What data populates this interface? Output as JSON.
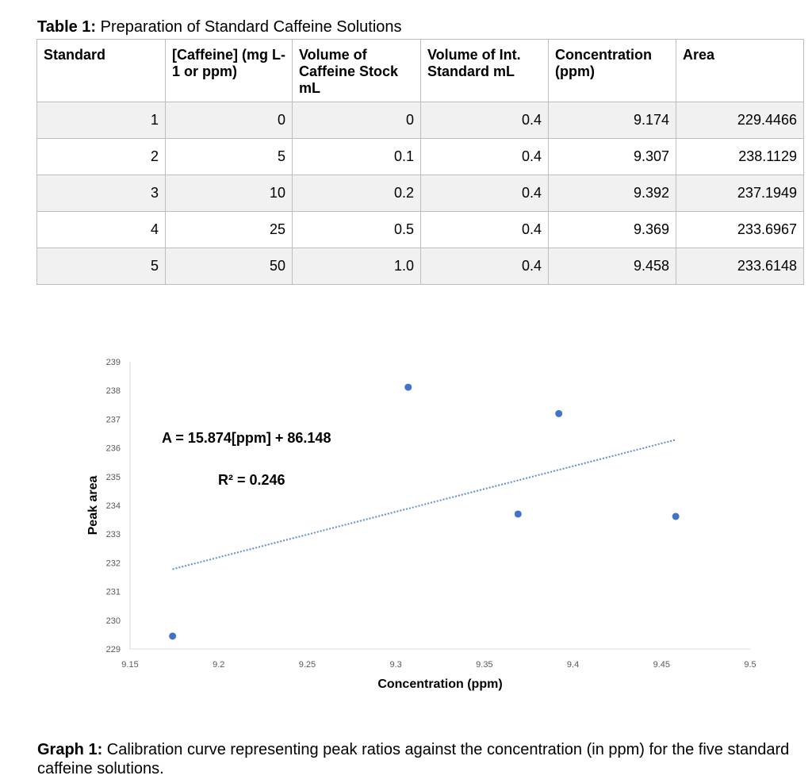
{
  "table": {
    "caption_bold": "Table 1:",
    "caption_rest": " Preparation of Standard Caffeine Solutions",
    "headers": [
      "Standard",
      "[Caffeine] (mg L-1 or ppm)",
      "Volume of Caffeine Stock mL",
      "Volume of Int. Standard mL",
      "Concentration (ppm)",
      "Area"
    ],
    "rows": [
      [
        "1",
        "0",
        "0",
        "0.4",
        "9.174",
        "229.4466"
      ],
      [
        "2",
        "5",
        "0.1",
        "0.4",
        "9.307",
        "238.1129"
      ],
      [
        "3",
        "10",
        "0.2",
        "0.4",
        "9.392",
        "237.1949"
      ],
      [
        "4",
        "25",
        "0.5",
        "0.4",
        "9.369",
        "233.6967"
      ],
      [
        "5",
        "50",
        "1.0",
        "0.4",
        "9.458",
        "233.6148"
      ]
    ]
  },
  "chart_data": {
    "type": "scatter",
    "xlabel": "Concentration (ppm)",
    "ylabel": "Peak area",
    "xlim": [
      9.15,
      9.5
    ],
    "ylim": [
      229,
      239
    ],
    "x_ticks": [
      "9.15",
      "9.2",
      "9.25",
      "9.3",
      "9.35",
      "9.4",
      "9.45",
      "9.5"
    ],
    "y_ticks": [
      "229",
      "230",
      "231",
      "232",
      "233",
      "234",
      "235",
      "236",
      "237",
      "238",
      "239"
    ],
    "points": [
      {
        "x": 9.174,
        "y": 229.4466
      },
      {
        "x": 9.307,
        "y": 238.1129
      },
      {
        "x": 9.392,
        "y": 237.1949
      },
      {
        "x": 9.369,
        "y": 233.6967
      },
      {
        "x": 9.458,
        "y": 233.6148
      }
    ],
    "trendline": {
      "slope": 15.874,
      "intercept": 86.148,
      "x_start": 9.174,
      "x_end": 9.458
    },
    "equation_label": "A = 15.874[ppm] + 86.148",
    "r2_label": "R² = 0.246",
    "point_color": "#4472c4",
    "trend_color": "#5b8ec9",
    "axis_color": "#d9d9d9",
    "tick_label_color": "#595959",
    "grid": false
  },
  "graph_caption": {
    "bold": "Graph 1:",
    "rest": " Calibration curve representing peak ratios against the  concentration (in ppm) for the five standard caffeine solutions."
  }
}
